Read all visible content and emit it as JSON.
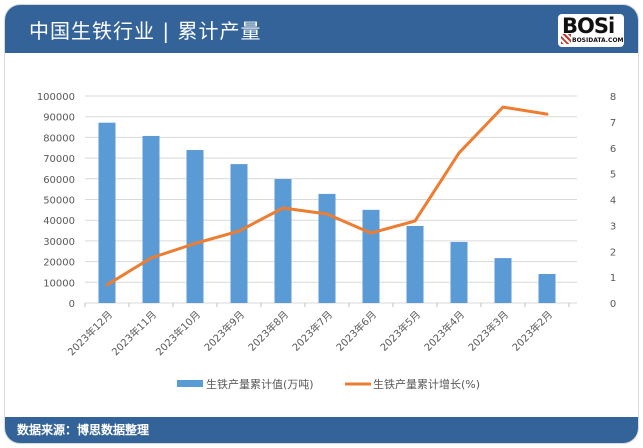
{
  "header": {
    "title": "中国生铁行业 | 累计产量",
    "logo_text": "BOSi",
    "logo_sub": "BOSIDATA.COM"
  },
  "footer": {
    "source": "数据来源：博思数据整理"
  },
  "legend": {
    "bar": "生铁产量累计值(万吨)",
    "line": "生铁产量累计增长(%)"
  },
  "colors": {
    "bar": "#5b9bd5",
    "line": "#ed7d31",
    "header": "#336399"
  },
  "chart_data": {
    "type": "bar",
    "title": "中国生铁行业 | 累计产量",
    "categories": [
      "2023年12月",
      "2023年11月",
      "2023年10月",
      "2023年9月",
      "2023年8月",
      "2023年7月",
      "2023年6月",
      "2023年5月",
      "2023年4月",
      "2023年3月",
      "2023年2月"
    ],
    "series": [
      {
        "name": "生铁产量累计值(万吨)",
        "type": "bar",
        "axis": "left",
        "values": [
          87100,
          80700,
          73900,
          67100,
          59900,
          52700,
          45000,
          37200,
          29500,
          21700,
          14000
        ]
      },
      {
        "name": "生铁产量累计增长(%)",
        "type": "line",
        "axis": "right",
        "values": [
          0.7,
          1.74,
          2.3,
          2.78,
          3.67,
          3.44,
          2.7,
          3.17,
          5.8,
          7.57,
          7.3
        ]
      }
    ],
    "ylim_left": [
      0,
      100000
    ],
    "yticks_left": [
      0,
      10000,
      20000,
      30000,
      40000,
      50000,
      60000,
      70000,
      80000,
      90000,
      100000
    ],
    "ylim_right": [
      0,
      8
    ],
    "yticks_right": [
      0,
      1,
      2,
      3,
      4,
      5,
      6,
      7,
      8
    ],
    "xlabel": "",
    "ylabel": "",
    "grid": true,
    "legend_position": "bottom"
  }
}
